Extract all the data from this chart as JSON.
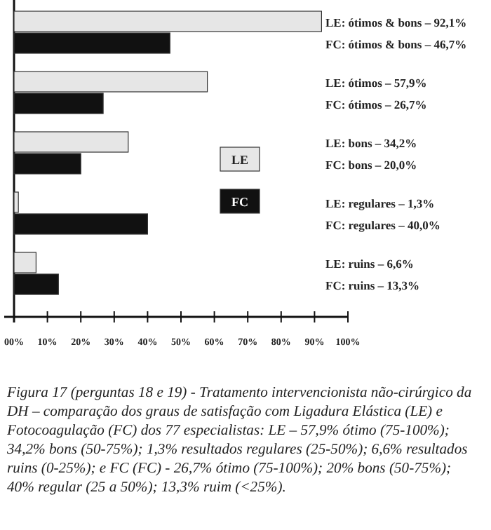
{
  "chart_data": {
    "type": "bar",
    "orientation": "horizontal",
    "categories": [
      "LE: ótimos & bons – 92,1%",
      "FC: ótimos & bons – 46,7%",
      "LE: ótimos – 57,9%",
      "FC: ótimos – 26,7%",
      "LE: bons – 34,2%",
      "FC: bons – 20,0%",
      "LE: regulares – 1,3%",
      "FC: regulares – 40,0%",
      "LE: ruins – 6,6%",
      "FC: ruins – 13,3%"
    ],
    "series": [
      {
        "name": "LE",
        "color": "#e6e6e6",
        "values": [
          92.1,
          null,
          57.9,
          null,
          34.2,
          null,
          1.3,
          null,
          6.6,
          null
        ]
      },
      {
        "name": "FC",
        "color": "#111111",
        "values": [
          null,
          46.7,
          null,
          26.7,
          null,
          20.0,
          null,
          40.0,
          null,
          13.3
        ]
      }
    ],
    "xlim": [
      0,
      100
    ],
    "xticks": [
      {
        "value": 0,
        "label": "00%"
      },
      {
        "value": 10,
        "label": "10%"
      },
      {
        "value": 20,
        "label": "20%"
      },
      {
        "value": 30,
        "label": "30%"
      },
      {
        "value": 40,
        "label": "40%"
      },
      {
        "value": 50,
        "label": "50%"
      },
      {
        "value": 60,
        "label": "60%"
      },
      {
        "value": 70,
        "label": "70%"
      },
      {
        "value": 80,
        "label": "80%"
      },
      {
        "value": 90,
        "label": "90%"
      },
      {
        "value": 100,
        "label": "100%"
      }
    ],
    "grid": false,
    "legend": "right",
    "annotations": [
      "Figura 17 (perguntas 18 e 19) - Tratamento intervencionista não-cirúrgico da DH – comparação dos graus de satisfação com Ligadura Elástica (LE) e Fotocoagulação (FC) dos 77 especialistas: LE – 57,9% ótimo (75-100%); 34,2% bons (50-75%); 1,3% resultados regulares (25-50%); 6,6% resultados ruins (0-25%); e FC (FC) - 26,7% ótimo (75-100%); 20% bons (50-75%); 40% regular (25 a 50%); 13,3% ruim (<25%)."
    ]
  }
}
